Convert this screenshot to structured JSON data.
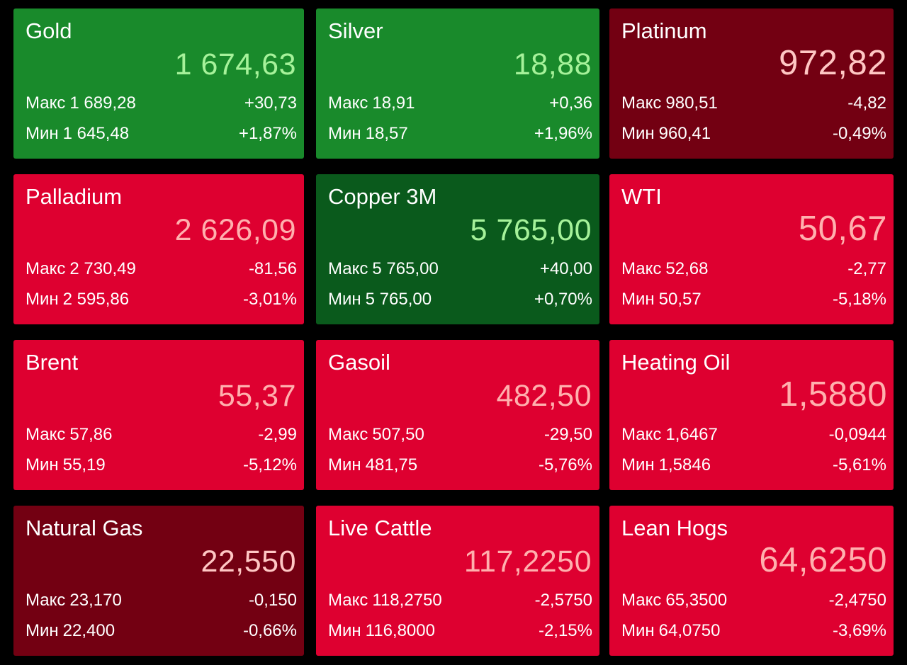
{
  "labels": {
    "high": "Макс",
    "low": "Мин"
  },
  "tiles": [
    {
      "name": "Gold",
      "price": "1 674,63",
      "high": "1 689,28",
      "low": "1 645,48",
      "change": "+30,73",
      "change_pct": "+1,87%",
      "trend": "up"
    },
    {
      "name": "Silver",
      "price": "18,88",
      "high": "18,91",
      "low": "18,57",
      "change": "+0,36",
      "change_pct": "+1,96%",
      "trend": "up"
    },
    {
      "name": "Platinum",
      "price": "972,82",
      "high": "980,51",
      "low": "960,41",
      "change": "-4,82",
      "change_pct": "-0,49%",
      "trend": "down"
    },
    {
      "name": "Palladium",
      "price": "2 626,09",
      "high": "2 730,49",
      "low": "2 595,86",
      "change": "-81,56",
      "change_pct": "-3,01%",
      "trend": "down"
    },
    {
      "name": "Copper 3M",
      "price": "5 765,00",
      "high": "5 765,00",
      "low": "5 765,00",
      "change": "+40,00",
      "change_pct": "+0,70%",
      "trend": "up"
    },
    {
      "name": "WTI",
      "price": "50,67",
      "high": "52,68",
      "low": "50,57",
      "change": "-2,77",
      "change_pct": "-5,18%",
      "trend": "down"
    },
    {
      "name": "Brent",
      "price": "55,37",
      "high": "57,86",
      "low": "55,19",
      "change": "-2,99",
      "change_pct": "-5,12%",
      "trend": "down"
    },
    {
      "name": "Gasoil",
      "price": "482,50",
      "high": "507,50",
      "low": "481,75",
      "change": "-29,50",
      "change_pct": "-5,76%",
      "trend": "down"
    },
    {
      "name": "Heating Oil",
      "price": "1,5880",
      "high": "1,6467",
      "low": "1,5846",
      "change": "-0,0944",
      "change_pct": "-5,61%",
      "trend": "down"
    },
    {
      "name": "Natural Gas",
      "price": "22,550",
      "high": "23,170",
      "low": "22,400",
      "change": "-0,150",
      "change_pct": "-0,66%",
      "trend": "down"
    },
    {
      "name": "Live Cattle",
      "price": "117,2250",
      "high": "118,2750",
      "low": "116,8000",
      "change": "-2,5750",
      "change_pct": "-2,15%",
      "trend": "down"
    },
    {
      "name": "Lean Hogs",
      "price": "64,6250",
      "high": "65,3500",
      "low": "64,0750",
      "change": "-2,4750",
      "change_pct": "-3,69%",
      "trend": "down"
    }
  ],
  "colors": {
    "up": "#198a2b",
    "up_dark": "#0a5a1c",
    "down": "#de0030",
    "down_dark": "#730012",
    "price_up": "#a6f29a",
    "price_down": "#ffb0ae"
  }
}
